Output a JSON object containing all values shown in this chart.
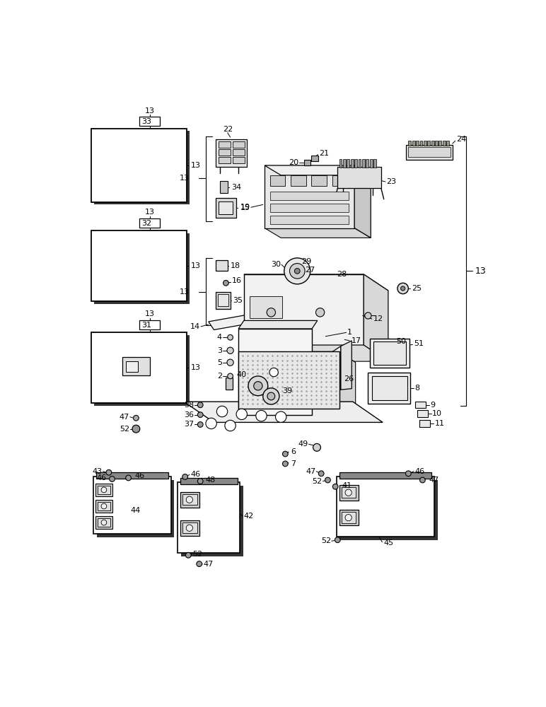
{
  "bg_color": "#ffffff",
  "fig_width": 7.72,
  "fig_height": 10.0,
  "dpi": 100
}
